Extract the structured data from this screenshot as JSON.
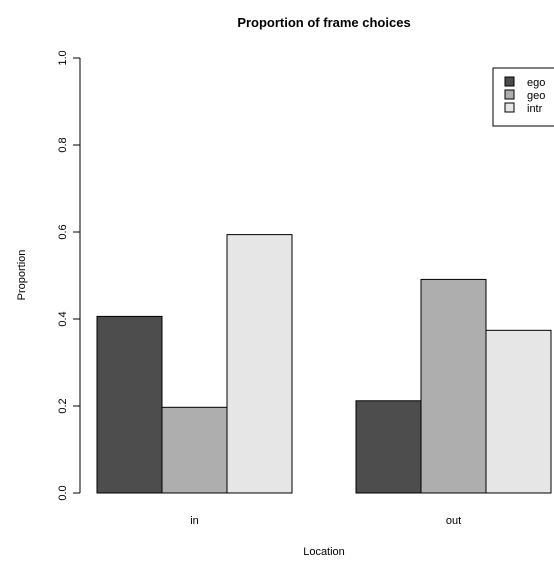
{
  "chart_data": {
    "type": "bar",
    "title": "Proportion of frame choices",
    "xlabel": "Location",
    "ylabel": "Proportion",
    "categories": [
      "in",
      "out"
    ],
    "series": [
      {
        "name": "ego",
        "color": "#4d4d4d",
        "values": [
          0.406,
          0.212
        ]
      },
      {
        "name": "geo",
        "color": "#aeaeae",
        "values": [
          0.197,
          0.491
        ]
      },
      {
        "name": "intr",
        "color": "#e6e6e6",
        "values": [
          0.594,
          0.374
        ]
      }
    ],
    "ylim": [
      0,
      1
    ],
    "yticks": [
      "0.0",
      "0.2",
      "0.4",
      "0.6",
      "0.8",
      "1.0"
    ],
    "grid": false,
    "legend_position": "top-right"
  }
}
